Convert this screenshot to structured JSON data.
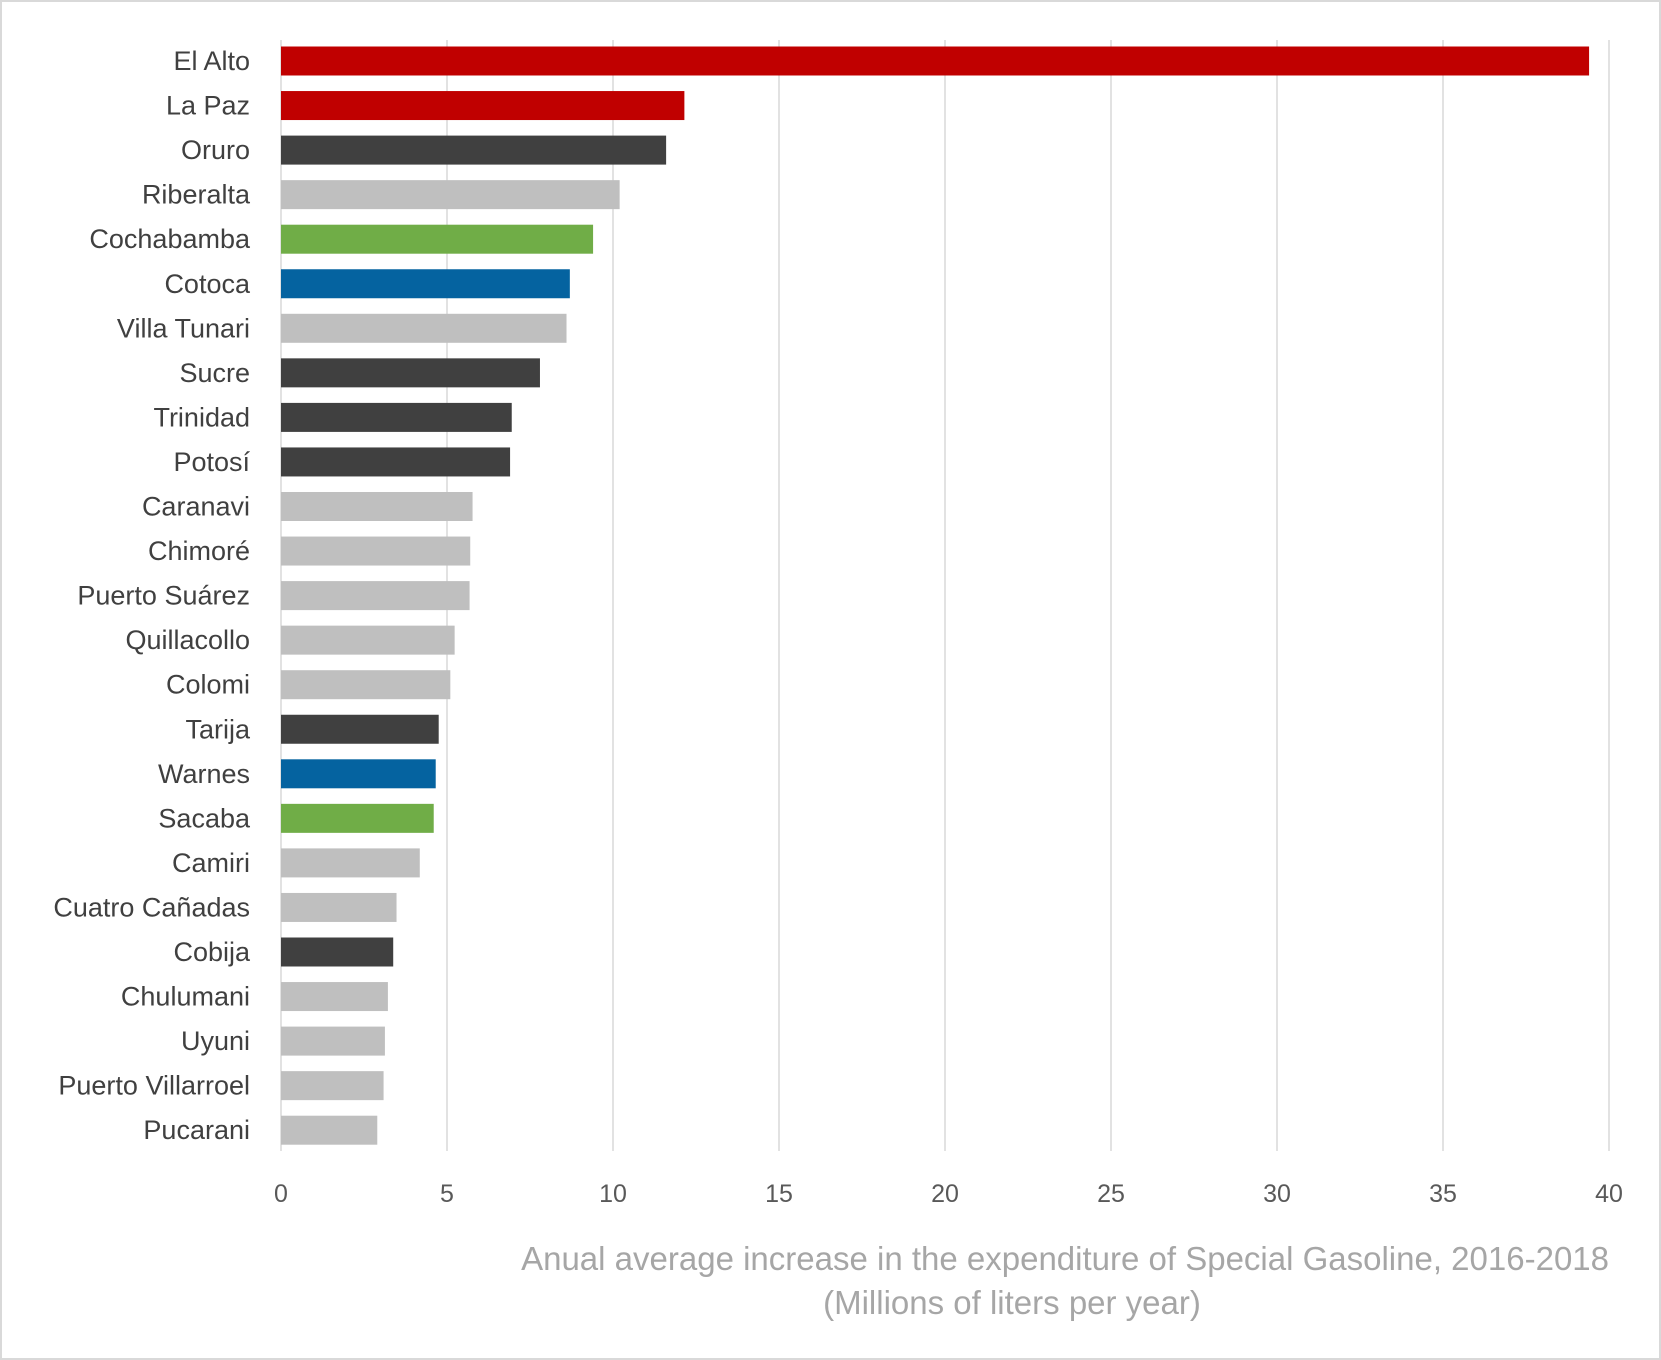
{
  "chart_data": {
    "type": "bar",
    "orientation": "horizontal",
    "title": "",
    "xlabel": "Anual average increase in the expenditure of Special Gasoline, 2016-2018",
    "xlabel_line2": "(Millions of liters per year)",
    "ylabel": "",
    "xlim": [
      0,
      40
    ],
    "x_ticks": [
      "0",
      "5",
      "10",
      "15",
      "20",
      "25",
      "30",
      "35",
      "40"
    ],
    "grid": "vertical",
    "legend": "none",
    "categories": [
      "El Alto",
      "La Paz",
      "Oruro",
      "Riberalta",
      "Cochabamba",
      "Cotoca",
      "Villa Tunari",
      "Sucre",
      "Trinidad",
      "Potosí",
      "Caranavi",
      "Chimoré",
      "Puerto Suárez",
      "Quillacollo",
      "Colomi",
      "Tarija",
      "Warnes",
      "Sacaba",
      "Camiri",
      "Cuatro Cañadas",
      "Cobija",
      "Chulumani",
      "Uyuni",
      "Puerto Villarroel",
      "Pucarani"
    ],
    "values": [
      39.4,
      12.15,
      11.6,
      10.2,
      9.4,
      8.7,
      8.6,
      7.8,
      6.95,
      6.9,
      5.77,
      5.7,
      5.68,
      5.23,
      5.1,
      4.75,
      4.66,
      4.6,
      4.18,
      3.48,
      3.38,
      3.22,
      3.13,
      3.09,
      2.9
    ],
    "colors": [
      "#c00000",
      "#c00000",
      "#404040",
      "#bfbfbf",
      "#70ad47",
      "#0563a0",
      "#bfbfbf",
      "#404040",
      "#404040",
      "#404040",
      "#bfbfbf",
      "#bfbfbf",
      "#bfbfbf",
      "#bfbfbf",
      "#bfbfbf",
      "#404040",
      "#0563a0",
      "#70ad47",
      "#bfbfbf",
      "#bfbfbf",
      "#404040",
      "#bfbfbf",
      "#bfbfbf",
      "#bfbfbf",
      "#bfbfbf"
    ]
  }
}
